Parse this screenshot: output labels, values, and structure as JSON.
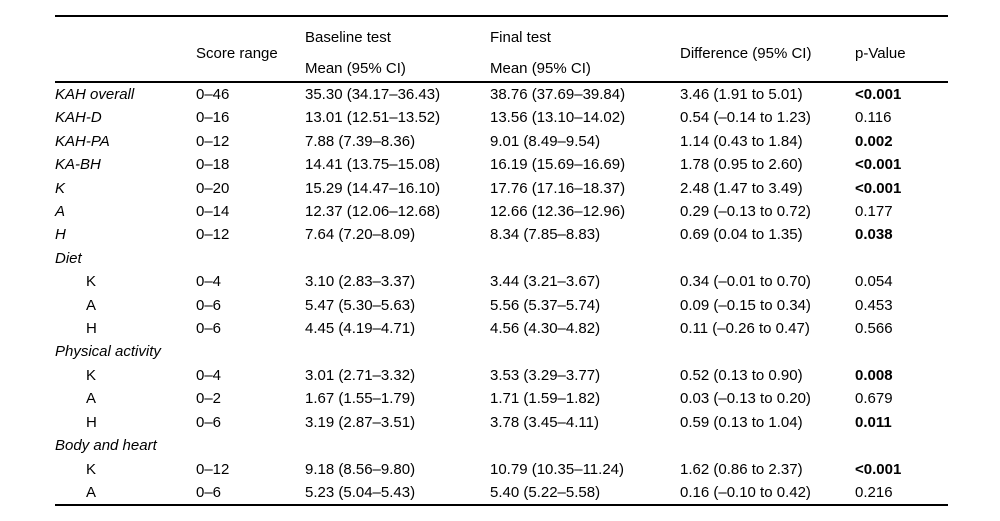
{
  "table": {
    "header": {
      "label": "",
      "score_range": "Score range",
      "baseline_line1": "Baseline test",
      "baseline_line2": "Mean (95% CI)",
      "final_line1": "Final test",
      "final_line2": "Mean (95% CI)",
      "difference": "Difference (95% CI)",
      "p_value": "p-Value"
    },
    "rows": [
      {
        "label": "KAH overall",
        "italic": true,
        "indent": false,
        "score_range": "0–46",
        "baseline": "35.30 (34.17–36.43)",
        "final": "38.76 (37.69–39.84)",
        "difference": "3.46 (1.91 to 5.01)",
        "p_value": "<0.001",
        "p_bold": true
      },
      {
        "label": "KAH-D",
        "italic": true,
        "indent": false,
        "score_range": "0–16",
        "baseline": "13.01 (12.51–13.52)",
        "final": "13.56 (13.10–14.02)",
        "difference": "0.54 (–0.14 to 1.23)",
        "p_value": "0.116",
        "p_bold": false
      },
      {
        "label": "KAH-PA",
        "italic": true,
        "indent": false,
        "score_range": "0–12",
        "baseline": "7.88 (7.39–8.36)",
        "final": "9.01 (8.49–9.54)",
        "difference": "1.14 (0.43 to 1.84)",
        "p_value": "0.002",
        "p_bold": true
      },
      {
        "label": "KA-BH",
        "italic": true,
        "indent": false,
        "score_range": "0–18",
        "baseline": "14.41 (13.75–15.08)",
        "final": "16.19 (15.69–16.69)",
        "difference": "1.78 (0.95 to 2.60)",
        "p_value": "<0.001",
        "p_bold": true
      },
      {
        "label": "K",
        "italic": true,
        "indent": false,
        "score_range": "0–20",
        "baseline": "15.29 (14.47–16.10)",
        "final": "17.76 (17.16–18.37)",
        "difference": "2.48 (1.47 to 3.49)",
        "p_value": "<0.001",
        "p_bold": true
      },
      {
        "label": "A",
        "italic": true,
        "indent": false,
        "score_range": "0–14",
        "baseline": "12.37 (12.06–12.68)",
        "final": "12.66 (12.36–12.96)",
        "difference": "0.29 (–0.13 to 0.72)",
        "p_value": "0.177",
        "p_bold": false
      },
      {
        "label": "H",
        "italic": true,
        "indent": false,
        "score_range": "0–12",
        "baseline": "7.64 (7.20–8.09)",
        "final": "8.34 (7.85–8.83)",
        "difference": "0.69 (0.04 to 1.35)",
        "p_value": "0.038",
        "p_bold": true
      },
      {
        "label": "Diet",
        "italic": true,
        "indent": false,
        "section": true,
        "score_range": "",
        "baseline": "",
        "final": "",
        "difference": "",
        "p_value": "",
        "p_bold": false
      },
      {
        "label": "K",
        "italic": false,
        "indent": true,
        "score_range": "0–4",
        "baseline": "3.10 (2.83–3.37)",
        "final": "3.44 (3.21–3.67)",
        "difference": "0.34 (–0.01 to 0.70)",
        "p_value": "0.054",
        "p_bold": false
      },
      {
        "label": "A",
        "italic": false,
        "indent": true,
        "score_range": "0–6",
        "baseline": "5.47 (5.30–5.63)",
        "final": "5.56 (5.37–5.74)",
        "difference": "0.09 (–0.15 to 0.34)",
        "p_value": "0.453",
        "p_bold": false
      },
      {
        "label": "H",
        "italic": false,
        "indent": true,
        "score_range": "0–6",
        "baseline": "4.45 (4.19–4.71)",
        "final": "4.56 (4.30–4.82)",
        "difference": "0.11 (–0.26 to 0.47)",
        "p_value": "0.566",
        "p_bold": false
      },
      {
        "label": "Physical activity",
        "italic": true,
        "indent": false,
        "section": true,
        "score_range": "",
        "baseline": "",
        "final": "",
        "difference": "",
        "p_value": "",
        "p_bold": false
      },
      {
        "label": "K",
        "italic": false,
        "indent": true,
        "score_range": "0–4",
        "baseline": "3.01 (2.71–3.32)",
        "final": "3.53 (3.29–3.77)",
        "difference": "0.52 (0.13 to 0.90)",
        "p_value": "0.008",
        "p_bold": true
      },
      {
        "label": "A",
        "italic": false,
        "indent": true,
        "score_range": "0–2",
        "baseline": "1.67 (1.55–1.79)",
        "final": "1.71 (1.59–1.82)",
        "difference": "0.03 (–0.13 to 0.20)",
        "p_value": "0.679",
        "p_bold": false
      },
      {
        "label": "H",
        "italic": false,
        "indent": true,
        "score_range": "0–6",
        "baseline": "3.19 (2.87–3.51)",
        "final": "3.78 (3.45–4.11)",
        "difference": "0.59 (0.13 to 1.04)",
        "p_value": "0.011",
        "p_bold": true
      },
      {
        "label": "Body and heart",
        "italic": true,
        "indent": false,
        "section": true,
        "score_range": "",
        "baseline": "",
        "final": "",
        "difference": "",
        "p_value": "",
        "p_bold": false
      },
      {
        "label": "K",
        "italic": false,
        "indent": true,
        "score_range": "0–12",
        "baseline": "9.18 (8.56–9.80)",
        "final": "10.79 (10.35–11.24)",
        "difference": "1.62 (0.86 to 2.37)",
        "p_value": "<0.001",
        "p_bold": true
      },
      {
        "label": "A",
        "italic": false,
        "indent": true,
        "score_range": "0–6",
        "baseline": "5.23 (5.04–5.43)",
        "final": "5.40 (5.22–5.58)",
        "difference": "0.16 (–0.10 to 0.42)",
        "p_value": "0.216",
        "p_bold": false
      }
    ]
  }
}
